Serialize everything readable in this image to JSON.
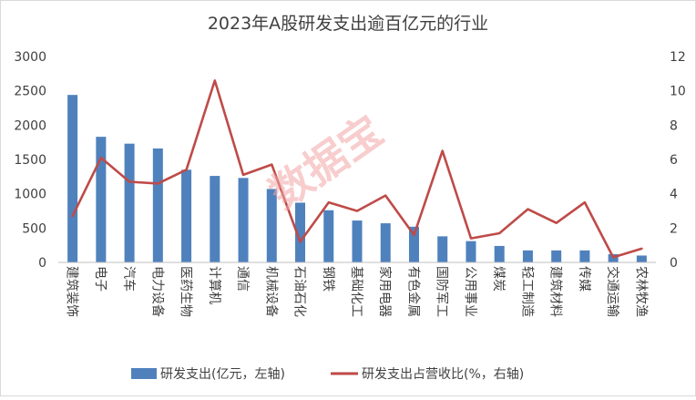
{
  "chart_data": {
    "type": "bar+line",
    "title": "2023年A股研发支出逾百亿元的行业",
    "watermark": "数据宝",
    "categories": [
      "建筑装饰",
      "电子",
      "汽车",
      "电力设备",
      "医药生物",
      "计算机",
      "通信",
      "机械设备",
      "石油石化",
      "钢铁",
      "基础化工",
      "家用电器",
      "有色金属",
      "国防军工",
      "公用事业",
      "煤炭",
      "轻工制造",
      "建筑材料",
      "传媒",
      "交通运输",
      "农林牧渔"
    ],
    "series": [
      {
        "name": "研发支出(亿元，左轴)",
        "type": "bar",
        "axis": "left",
        "color": "#4f81bd",
        "values": [
          2440,
          1830,
          1730,
          1660,
          1350,
          1260,
          1230,
          1070,
          870,
          760,
          610,
          570,
          520,
          380,
          310,
          240,
          175,
          175,
          175,
          120,
          100
        ]
      },
      {
        "name": "研发支出占营收比(%，右轴)",
        "type": "line",
        "axis": "right",
        "color": "#be4b48",
        "values": [
          2.7,
          6.1,
          4.7,
          4.6,
          5.4,
          10.6,
          5.1,
          5.7,
          1.2,
          3.5,
          3.0,
          3.9,
          1.6,
          6.5,
          1.4,
          1.7,
          3.1,
          2.3,
          3.5,
          0.3,
          0.8
        ]
      }
    ],
    "yleft": {
      "min": 0,
      "max": 3000,
      "ticks": [
        0,
        500,
        1000,
        1500,
        2000,
        2500,
        3000
      ]
    },
    "yright": {
      "min": 0,
      "max": 12,
      "ticks": [
        0,
        2,
        4,
        6,
        8,
        10,
        12
      ]
    },
    "grid": false,
    "legend": "bottom"
  }
}
